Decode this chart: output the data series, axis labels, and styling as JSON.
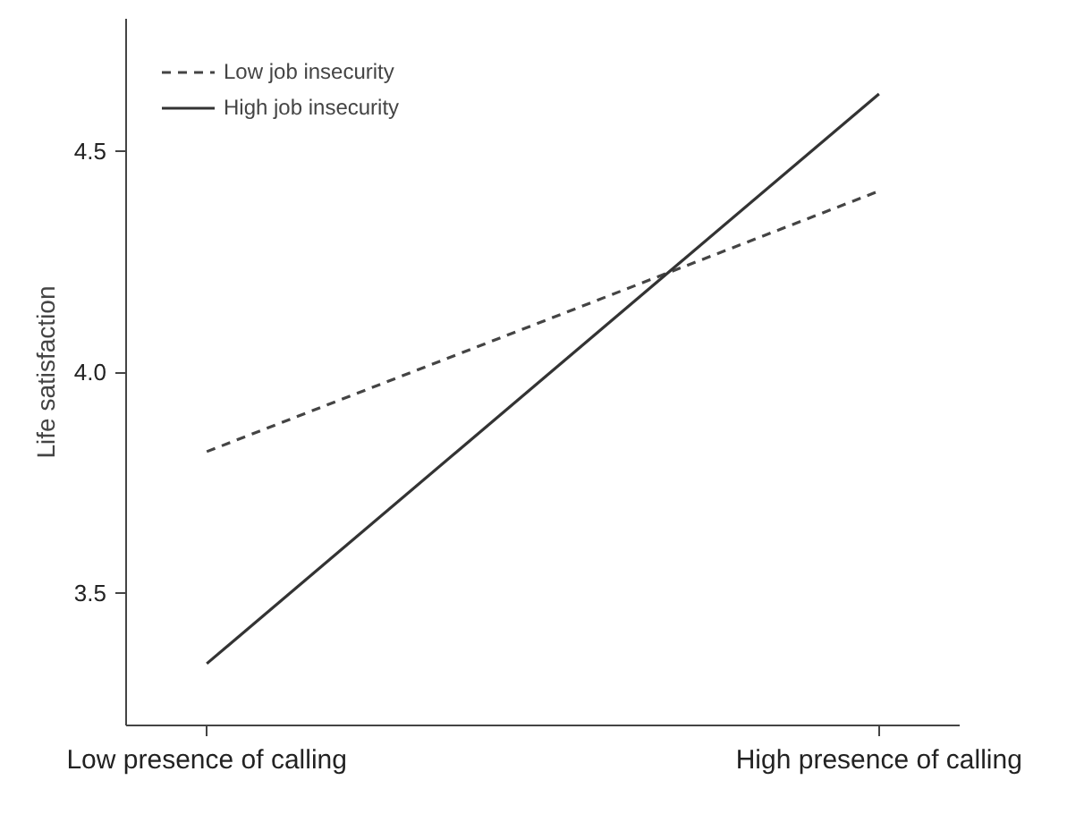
{
  "chart_data": {
    "type": "line",
    "ylabel": "Life satisfaction",
    "categories": [
      "Low presence of calling",
      "High presence of calling"
    ],
    "series": [
      {
        "name": "Low job insecurity",
        "color": "#444444",
        "values": [
          3.82,
          4.41
        ],
        "line_style": "dashed"
      },
      {
        "name": "High job insecurity",
        "color": "#333333",
        "values": [
          3.34,
          4.63
        ],
        "line_style": "solid"
      }
    ],
    "ylim": [
      3.2,
      4.8
    ],
    "yticks": [
      {
        "value": 3.5,
        "label": "3.5"
      },
      {
        "value": 4.0,
        "label": "4.0"
      },
      {
        "value": 4.5,
        "label": "4.5"
      }
    ],
    "grid": false,
    "legend": "top left",
    "marker": "none"
  }
}
